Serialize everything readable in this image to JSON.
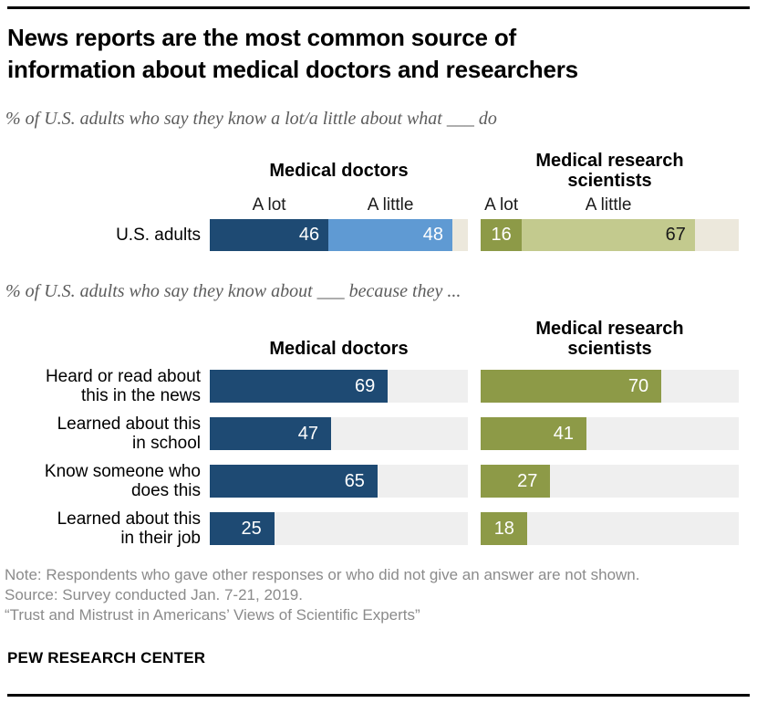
{
  "title": {
    "line1": "News reports are the most common source of",
    "line2": "information about medical doctors and researchers"
  },
  "chart_data": [
    {
      "type": "bar",
      "subtype": "stacked-horizontal",
      "subtitle": "% of U.S. adults who say they know a lot/a little about what ___ do",
      "row_label": "U.S. adults",
      "axis_max": 100,
      "remainder_color": "#ece8dc",
      "groups": [
        {
          "name": "Medical doctors",
          "name_lines": [
            "Medical doctors"
          ],
          "segments": [
            {
              "label": "A lot",
              "value": 46,
              "color": "#1e4a73",
              "value_color": "#ffffff"
            },
            {
              "label": "A little",
              "value": 48,
              "color": "#5f9ad3",
              "value_color": "#ffffff"
            }
          ]
        },
        {
          "name": "Medical research scientists",
          "name_lines": [
            "Medical research",
            "scientists"
          ],
          "segments": [
            {
              "label": "A lot",
              "value": 16,
              "color": "#8d9a47",
              "value_color": "#ffffff"
            },
            {
              "label": "A little",
              "value": 67,
              "color": "#c3ca8e",
              "value_color": "#1a1a1a"
            }
          ]
        }
      ]
    },
    {
      "type": "bar",
      "subtype": "grouped-horizontal",
      "subtitle": "% of U.S. adults who say they know about ___ because they ...",
      "axis_max": 100,
      "track_color": "#efefef",
      "categories": [
        "Heard or read about this in the news",
        "Learned about this in school",
        "Know someone who does this",
        "Learned about this in their job"
      ],
      "categories_lines": [
        [
          "Heard or read about",
          "this in the news"
        ],
        [
          "Learned about this",
          "in school"
        ],
        [
          "Know someone who",
          "does this"
        ],
        [
          "Learned about this",
          "in their job"
        ]
      ],
      "series": [
        {
          "name": "Medical doctors",
          "name_lines": [
            "Medical doctors"
          ],
          "color": "#1e4a73",
          "values": [
            69,
            47,
            65,
            25
          ]
        },
        {
          "name": "Medical research scientists",
          "name_lines": [
            "Medical research",
            "scientists"
          ],
          "color": "#8d9a47",
          "values": [
            70,
            41,
            27,
            18
          ]
        }
      ]
    }
  ],
  "notes": {
    "note": "Note: Respondents who gave other responses or who did not give an answer are not shown.",
    "source": "Source: Survey conducted Jan. 7-21, 2019.",
    "report": "“Trust and Mistrust in Americans’ Views of Scientific Experts”"
  },
  "brand": "PEW RESEARCH CENTER"
}
